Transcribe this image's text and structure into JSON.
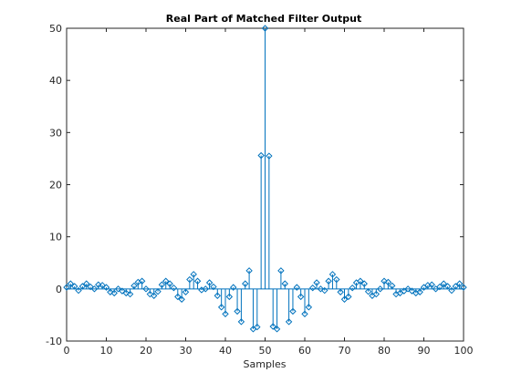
{
  "figure": {
    "title": "Real Part of Matched Filter Output"
  },
  "chart_data": {
    "type": "stem",
    "title": "Real Part of Matched Filter Output",
    "xlabel": "Samples",
    "ylabel": "",
    "xlim": [
      0,
      100
    ],
    "ylim": [
      -10,
      50
    ],
    "xticks": [
      0,
      10,
      20,
      30,
      40,
      50,
      60,
      70,
      80,
      90,
      100
    ],
    "yticks": [
      -10,
      0,
      10,
      20,
      30,
      40,
      50
    ],
    "grid": false,
    "color": "#0072bd",
    "marker": "diamond",
    "x": [
      0,
      1,
      2,
      3,
      4,
      5,
      6,
      7,
      8,
      9,
      10,
      11,
      12,
      13,
      14,
      15,
      16,
      17,
      18,
      19,
      20,
      21,
      22,
      23,
      24,
      25,
      26,
      27,
      28,
      29,
      30,
      31,
      32,
      33,
      34,
      35,
      36,
      37,
      38,
      39,
      40,
      41,
      42,
      43,
      44,
      45,
      46,
      47,
      48,
      49,
      50,
      51,
      52,
      53,
      54,
      55,
      56,
      57,
      58,
      59,
      60,
      61,
      62,
      63,
      64,
      65,
      66,
      67,
      68,
      69,
      70,
      71,
      72,
      73,
      74,
      75,
      76,
      77,
      78,
      79,
      80,
      81,
      82,
      83,
      84,
      85,
      86,
      87,
      88,
      89,
      90,
      91,
      92,
      93,
      94,
      95,
      96,
      97,
      98,
      99,
      100
    ],
    "y": [
      0.3,
      1.0,
      0.5,
      -0.3,
      0.5,
      1.0,
      0.4,
      0,
      0.8,
      0.7,
      0.3,
      -0.6,
      -0.8,
      0,
      -0.4,
      -0.8,
      -1.0,
      0.6,
      1.3,
      1.5,
      0,
      -1.0,
      -1.3,
      -0.5,
      0.8,
      1.5,
      1.0,
      0.2,
      -1.5,
      -2.0,
      -0.6,
      1.8,
      2.8,
      1.5,
      -0.2,
      0,
      1.2,
      0.4,
      -1.3,
      -3.5,
      -4.8,
      -1.5,
      0.3,
      -4.3,
      -6.3,
      1.0,
      3.5,
      -7.7,
      -7.3,
      25.6,
      50.0,
      25.5,
      -7.2,
      -7.7,
      3.5,
      1.0,
      -6.3,
      -4.3,
      0.3,
      -1.5,
      -4.8,
      -3.5,
      0.2,
      1.2,
      0,
      -0.3,
      1.5,
      2.8,
      1.8,
      -0.6,
      -2.0,
      -1.5,
      0.2,
      1.2,
      1.5,
      1.0,
      -0.5,
      -1.3,
      -1.0,
      0,
      1.5,
      1.3,
      0.6,
      -1.0,
      -0.8,
      -0.4,
      0,
      -0.4,
      -0.8,
      -0.6,
      0.3,
      0.7,
      0.8,
      0,
      0.4,
      1.0,
      0.5,
      -0.3,
      0.5,
      1.0,
      0.3
    ]
  }
}
